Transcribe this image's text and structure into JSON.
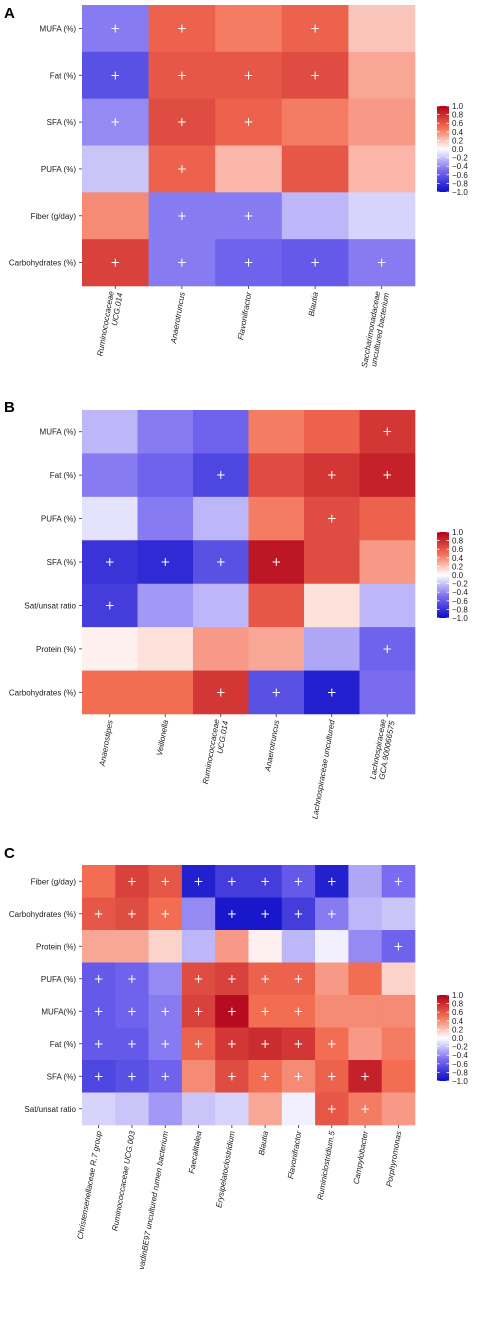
{
  "panels": [
    {
      "letter": "A",
      "chart_data": {
        "type": "heatmap",
        "rows": [
          "MUFA (%)",
          "Fat (%)",
          "SFA (%)",
          "PUFA (%)",
          "Fiber (g/day)",
          "Carbohydrates (%)"
        ],
        "columns": [
          "Ruminococcaceae\nUCG.014",
          "Anaerotruncus",
          "Flavonifractor",
          "Blautia",
          "Saccharimonadaceae\nuncultured bacterium"
        ],
        "values": [
          [
            -0.45,
            0.55,
            0.45,
            0.55,
            0.2
          ],
          [
            -0.65,
            0.6,
            0.6,
            0.65,
            0.3
          ],
          [
            -0.4,
            0.65,
            0.55,
            0.45,
            0.35
          ],
          [
            -0.2,
            0.55,
            0.25,
            0.6,
            0.25
          ],
          [
            0.4,
            -0.45,
            -0.45,
            -0.25,
            -0.15
          ],
          [
            0.7,
            -0.45,
            -0.55,
            -0.6,
            -0.45
          ]
        ],
        "significant": [
          [
            true,
            true,
            false,
            true,
            false
          ],
          [
            true,
            true,
            true,
            true,
            false
          ],
          [
            true,
            true,
            true,
            false,
            false
          ],
          [
            false,
            true,
            false,
            false,
            false
          ],
          [
            false,
            true,
            true,
            false,
            false
          ],
          [
            true,
            true,
            true,
            true,
            true
          ]
        ]
      }
    },
    {
      "letter": "B",
      "chart_data": {
        "type": "heatmap",
        "rows": [
          "MUFA (%)",
          "Fat (%)",
          "PUFA (%)",
          "SFA (%)",
          "Sat/unsat ratio",
          "Protein (%)",
          "Carbohydrates (%)"
        ],
        "columns": [
          "Anaerostipes",
          "Veillonella",
          "Ruminococcaceae\nUCG.014",
          "Anaerotruncus",
          "Lachnospiraceae uncultured",
          "Lachnospiraceae\nGCA.900066575"
        ],
        "values": [
          [
            -0.25,
            -0.45,
            -0.55,
            0.45,
            0.55,
            0.75
          ],
          [
            -0.45,
            -0.55,
            -0.7,
            0.65,
            0.75,
            0.85
          ],
          [
            -0.1,
            -0.45,
            -0.25,
            0.45,
            0.65,
            0.55
          ],
          [
            -0.8,
            -0.85,
            -0.65,
            0.9,
            0.65,
            0.35
          ],
          [
            -0.75,
            -0.35,
            -0.25,
            0.6,
            0.1,
            -0.25
          ],
          [
            0.05,
            0.1,
            0.35,
            0.3,
            -0.3,
            -0.55
          ],
          [
            0.5,
            0.5,
            0.75,
            -0.65,
            -0.9,
            -0.5
          ]
        ],
        "significant": [
          [
            false,
            false,
            false,
            false,
            false,
            true
          ],
          [
            false,
            false,
            true,
            false,
            true,
            true
          ],
          [
            false,
            false,
            false,
            false,
            true,
            false
          ],
          [
            true,
            true,
            true,
            true,
            false,
            false
          ],
          [
            true,
            false,
            false,
            false,
            false,
            false
          ],
          [
            false,
            false,
            false,
            false,
            false,
            true
          ],
          [
            false,
            false,
            true,
            true,
            true,
            false
          ]
        ]
      }
    },
    {
      "letter": "C",
      "chart_data": {
        "type": "heatmap",
        "rows": [
          "Fiber (g/day)",
          "Carbohydrates (%)",
          "Protein (%)",
          "PUFA (%)",
          "MUFA(%)",
          "Fat (%)",
          "SFA (%)",
          "Sat/unsat ratio"
        ],
        "columns": [
          "Christensenellaceae R.7 group",
          "Ruminococcaceae UCG.003",
          "vadinBE97 uncultured rumen bacterium",
          "Faecalitalea",
          "Erysipelatoclostridium",
          "Blautia",
          "Flavonifractor",
          "Ruminiclostridium.5",
          "Campylobacter",
          "Porphyromonas"
        ],
        "values": [
          [
            0.5,
            0.7,
            0.6,
            -0.9,
            -0.75,
            -0.75,
            -0.6,
            -0.9,
            -0.3,
            -0.5
          ],
          [
            0.6,
            0.65,
            0.5,
            -0.4,
            -0.95,
            -0.95,
            -0.75,
            -0.45,
            -0.25,
            -0.2
          ],
          [
            0.3,
            0.3,
            0.15,
            -0.25,
            0.35,
            0.05,
            -0.25,
            -0.05,
            -0.4,
            -0.55
          ],
          [
            -0.6,
            -0.55,
            -0.4,
            0.65,
            0.7,
            0.55,
            0.55,
            0.35,
            0.5,
            0.15
          ],
          [
            -0.6,
            -0.55,
            -0.45,
            0.7,
            0.95,
            0.5,
            0.5,
            0.4,
            0.4,
            0.4
          ],
          [
            -0.6,
            -0.6,
            -0.45,
            0.55,
            0.75,
            0.8,
            0.75,
            0.5,
            0.35,
            0.45
          ],
          [
            -0.7,
            -0.65,
            -0.55,
            0.4,
            0.65,
            0.5,
            0.4,
            0.55,
            0.85,
            0.5
          ],
          [
            -0.15,
            -0.2,
            -0.35,
            -0.2,
            -0.15,
            0.3,
            -0.05,
            0.6,
            0.45,
            0.35
          ]
        ],
        "significant": [
          [
            false,
            true,
            true,
            true,
            true,
            true,
            true,
            true,
            false,
            true
          ],
          [
            true,
            true,
            true,
            false,
            true,
            true,
            true,
            true,
            false,
            false
          ],
          [
            false,
            false,
            false,
            false,
            false,
            false,
            false,
            false,
            false,
            true
          ],
          [
            true,
            true,
            false,
            true,
            true,
            true,
            true,
            false,
            false,
            false
          ],
          [
            true,
            true,
            true,
            true,
            true,
            true,
            true,
            false,
            false,
            false
          ],
          [
            true,
            true,
            true,
            true,
            true,
            true,
            true,
            true,
            false,
            false
          ],
          [
            true,
            true,
            true,
            false,
            true,
            true,
            true,
            true,
            true,
            false
          ],
          [
            false,
            false,
            false,
            false,
            false,
            false,
            false,
            true,
            true,
            false
          ]
        ]
      }
    }
  ],
  "legend": {
    "ticks": [
      "1.0",
      "0.8",
      "0.6",
      "0.4",
      "0.2",
      "0.0",
      "−0.2",
      "−0.4",
      "−0.6",
      "−0.8",
      "−1.0"
    ],
    "tick_values": [
      1.0,
      0.8,
      0.6,
      0.4,
      0.2,
      0.0,
      -0.2,
      -0.4,
      -0.6,
      -0.8,
      -1.0
    ],
    "range": [
      -1,
      1
    ],
    "colors": {
      "low": "#0d0dc8",
      "mid": "#ffffff",
      "high": "#b0001a"
    }
  },
  "significance_marker": "+",
  "colors": {
    "panel_background": "#ebebeb",
    "grid": "#ffffff"
  }
}
